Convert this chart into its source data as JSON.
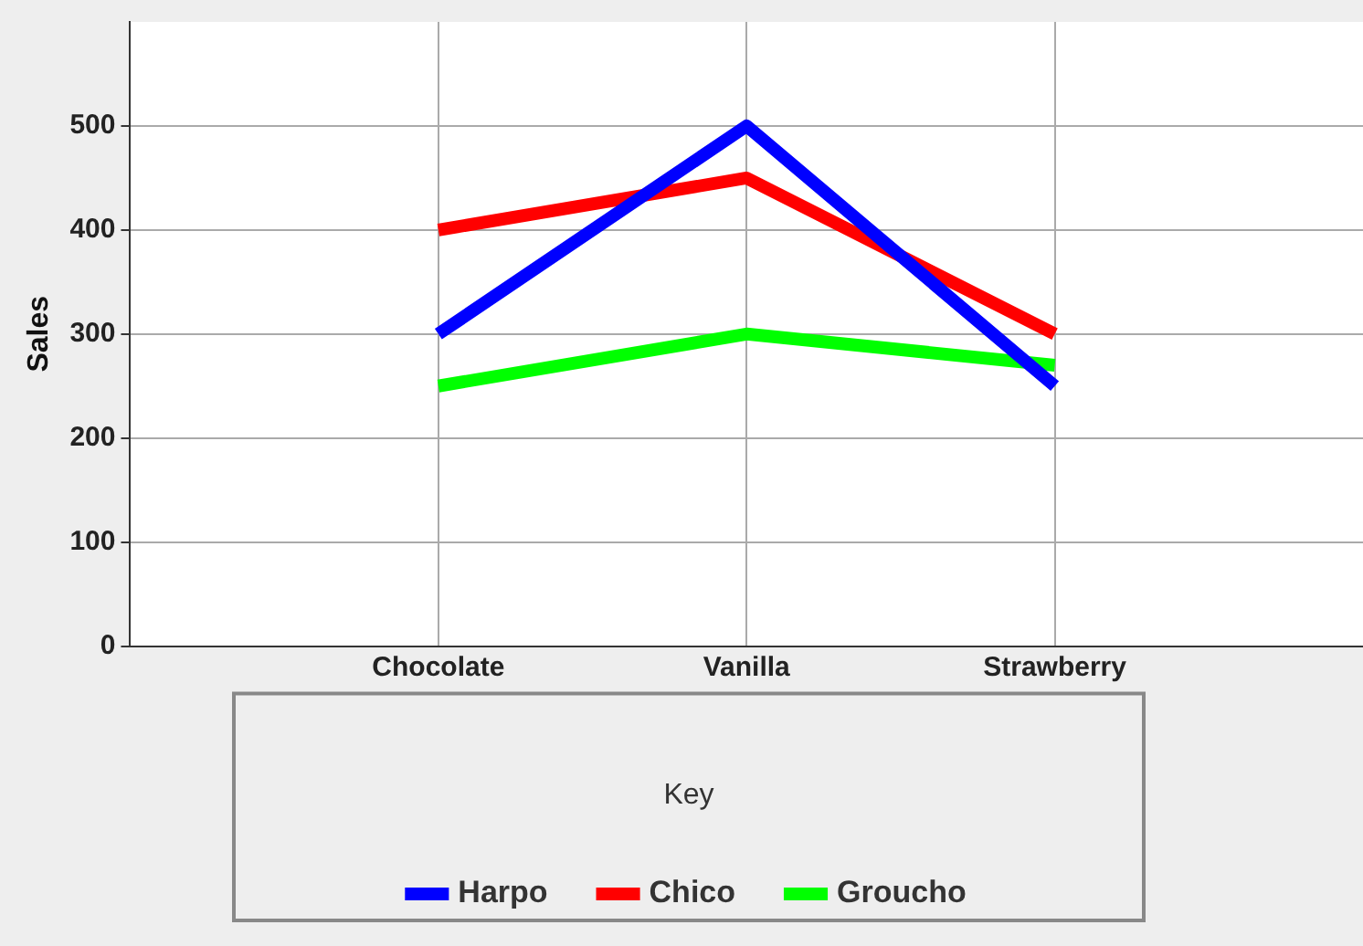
{
  "chart_data": {
    "type": "line",
    "ylabel": "Sales",
    "legend_title": "Key",
    "categories": [
      "Chocolate",
      "Vanilla",
      "Strawberry"
    ],
    "series": [
      {
        "name": "Harpo",
        "color": "#0000ff",
        "values": [
          300,
          500,
          250
        ]
      },
      {
        "name": "Chico",
        "color": "#ff0000",
        "values": [
          400,
          450,
          300
        ]
      },
      {
        "name": "Groucho",
        "color": "#00ff00",
        "values": [
          250,
          300,
          270
        ]
      }
    ],
    "ylim": [
      0,
      600
    ],
    "yticks": [
      0,
      100,
      200,
      300,
      400,
      500
    ],
    "grid": true,
    "legend": "bottom",
    "marker": "none",
    "line_style": "solid"
  }
}
